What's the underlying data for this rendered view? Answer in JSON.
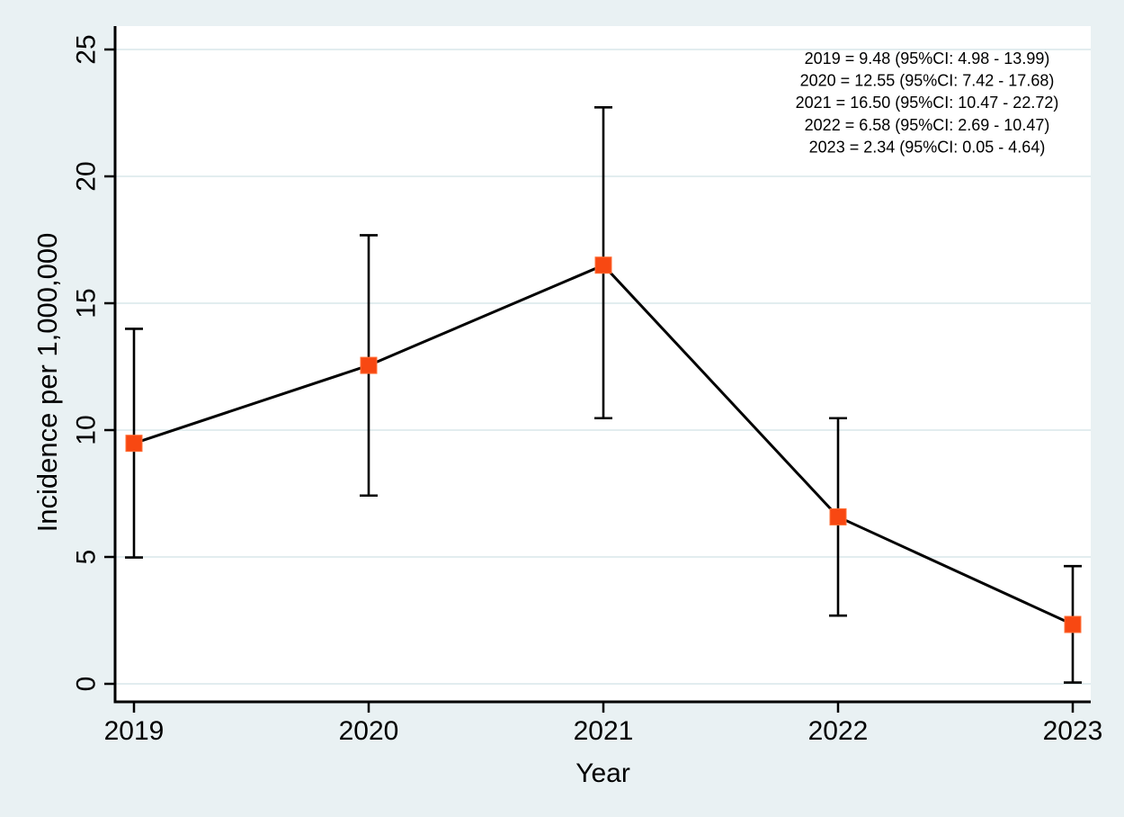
{
  "chart_data": {
    "type": "line",
    "x": [
      2019,
      2020,
      2021,
      2022,
      2023
    ],
    "series": [
      {
        "name": "Incidence",
        "values": [
          9.48,
          12.55,
          16.5,
          6.58,
          2.34
        ],
        "ci_lower": [
          4.98,
          7.42,
          10.47,
          2.69,
          0.05
        ],
        "ci_upper": [
          13.99,
          17.68,
          22.72,
          10.47,
          4.64
        ]
      }
    ],
    "title": "",
    "xlabel": "Year",
    "ylabel": "Incidence per 1,000,000",
    "ylim": [
      0,
      25
    ],
    "yticks": [
      0,
      5,
      10,
      15,
      20,
      25
    ],
    "xtick_labels": [
      "2019",
      "2020",
      "2021",
      "2022",
      "2023"
    ],
    "grid": true,
    "error_bars": true,
    "marker": "square",
    "legend_position": "none",
    "annotations": [
      "2019 = 9.48 (95%CI: 4.98 - 13.99)",
      "2020 = 12.55 (95%CI: 7.42 - 17.68)",
      "2021 = 16.50 (95%CI: 10.47 - 22.72)",
      "2022 = 6.58 (95%CI: 2.69 - 10.47)",
      "2023 = 2.34 (95%CI: 0.05 - 4.64)"
    ],
    "colors": {
      "background": "#e9f1f3",
      "plot_background": "#ffffff",
      "gridline": "#e2edef",
      "axis": "#000000",
      "line": "#000000",
      "marker_fill": "#f84812",
      "marker_edge": "#ff7038",
      "text": "#000000"
    }
  }
}
